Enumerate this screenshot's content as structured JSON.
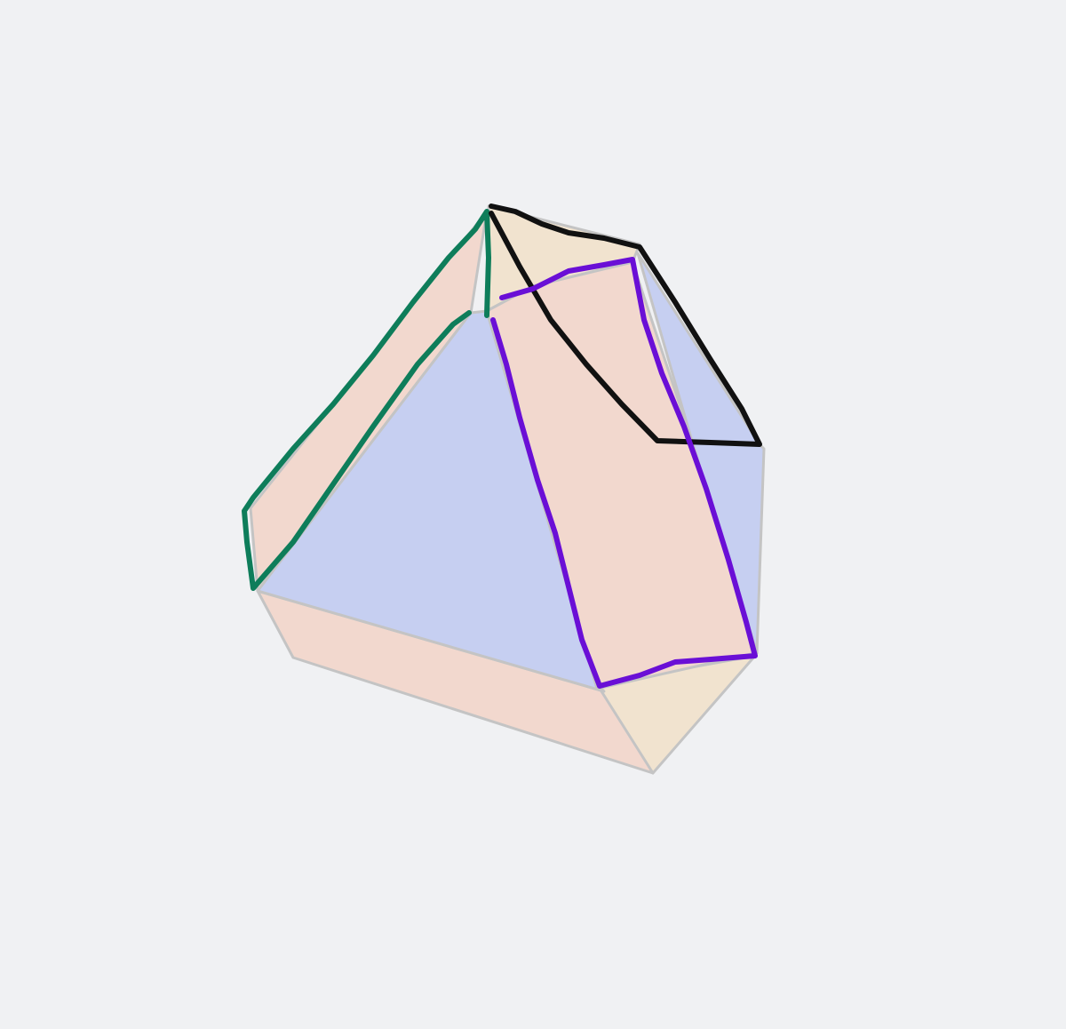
{
  "diagram": {
    "subject": "truncated-tetrahedron-solid",
    "colors": {
      "background": "#f0f1f3",
      "face_blue": "#c6cff1",
      "face_pink": "#f2d8ce",
      "face_cream": "#f1e3cf",
      "face_edge": "#c4c4c4",
      "green_outline": "#0e7d5a",
      "black_outline": "#111111",
      "purple_outline": "#6a0fd6"
    },
    "annotations": [
      {
        "name": "green-outline",
        "color": "#0e7d5a"
      },
      {
        "name": "black-outline",
        "color": "#111111"
      },
      {
        "name": "purple-outline",
        "color": "#6a0fd6"
      }
    ]
  }
}
